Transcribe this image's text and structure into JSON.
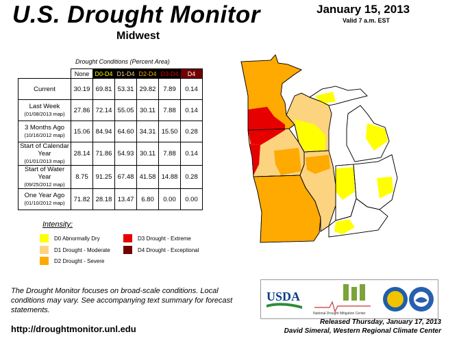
{
  "header": {
    "title": "U.S. Drought Monitor",
    "region": "Midwest",
    "date": "January 15, 2013",
    "valid": "Valid 7 a.m. EST"
  },
  "table": {
    "caption": "Drought Conditions (Percent Area)",
    "columns": [
      "None",
      "D0-D4",
      "D1-D4",
      "D2-D4",
      "D3-D4",
      "D4"
    ],
    "rows": [
      {
        "label": "Current",
        "sub": "",
        "values": [
          "30.19",
          "69.81",
          "53.31",
          "29.82",
          "7.89",
          "0.14"
        ]
      },
      {
        "label": "Last Week",
        "sub": "(01/08/2013 map)",
        "values": [
          "27.86",
          "72.14",
          "55.05",
          "30.11",
          "7.88",
          "0.14"
        ]
      },
      {
        "label": "3 Months Ago",
        "sub": "(10/16/2012 map)",
        "values": [
          "15.06",
          "84.94",
          "64.60",
          "34.31",
          "15.50",
          "0.28"
        ]
      },
      {
        "label": "Start of Calendar Year",
        "sub": "(01/01/2013 map)",
        "values": [
          "28.14",
          "71.86",
          "54.93",
          "30.11",
          "7.88",
          "0.14"
        ]
      },
      {
        "label": "Start of Water Year",
        "sub": "(09/25/2012 map)",
        "values": [
          "8.75",
          "91.25",
          "67.48",
          "41.58",
          "14.88",
          "0.28"
        ]
      },
      {
        "label": "One Year Ago",
        "sub": "(01/10/2012 map)",
        "values": [
          "71.82",
          "28.18",
          "13.47",
          "6.80",
          "0.00",
          "0.00"
        ]
      }
    ]
  },
  "legend": {
    "title": "Intensity:",
    "items": [
      {
        "label": "D0 Abnormally Dry",
        "color": "#ffff00"
      },
      {
        "label": "D1 Drought - Moderate",
        "color": "#fcd37f"
      },
      {
        "label": "D2 Drought - Severe",
        "color": "#ffaa00"
      },
      {
        "label": "D3 Drought - Extreme",
        "color": "#e60000"
      },
      {
        "label": "D4 Drought - Exceptional",
        "color": "#730000"
      }
    ]
  },
  "footer": {
    "note": "The Drought Monitor focuses on broad-scale conditions. Local conditions may vary. See accompanying text summary for forecast statements.",
    "url": "http://droughtmonitor.unl.edu",
    "released": "Released Thursday, January 17, 2013",
    "author": "David Simeral, Western Regional Climate Center"
  },
  "logos": {
    "usda": "USDA",
    "ndmc": "National Drought Mitigation Center"
  }
}
